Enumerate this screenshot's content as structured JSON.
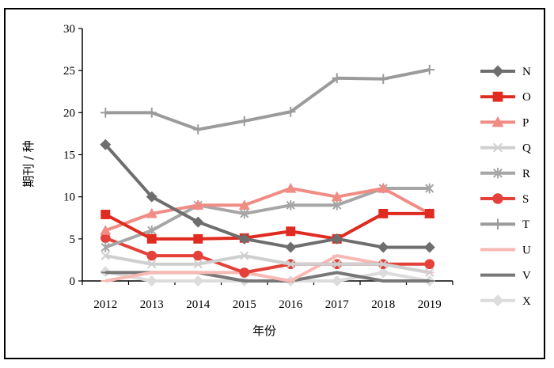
{
  "chart_data": {
    "type": "line",
    "title": "",
    "xlabel": "年份",
    "ylabel": "期刊 / 种",
    "categories": [
      "2012",
      "2013",
      "2014",
      "2015",
      "2016",
      "2017",
      "2018",
      "2019"
    ],
    "ylim": [
      0,
      30
    ],
    "yticks": [
      "0",
      "5",
      "10",
      "15",
      "20",
      "25",
      "30"
    ],
    "grid": false,
    "legend_position": "right",
    "series": [
      {
        "name": "N",
        "color": "#6e6e6e",
        "marker": "diamond",
        "values": [
          16.2,
          10,
          7,
          5,
          4,
          5,
          4,
          4
        ]
      },
      {
        "name": "O",
        "color": "#e02b20",
        "marker": "square",
        "values": [
          7.9,
          5,
          5,
          5.1,
          5.9,
          5,
          8,
          8
        ]
      },
      {
        "name": "P",
        "color": "#f08c84",
        "marker": "triangle",
        "values": [
          6,
          8,
          9,
          9,
          11,
          10,
          11,
          8
        ]
      },
      {
        "name": "Q",
        "color": "#cfcfcf",
        "marker": "x",
        "values": [
          3,
          2,
          2,
          3,
          2,
          2,
          2,
          1
        ]
      },
      {
        "name": "R",
        "color": "#a6a6a6",
        "marker": "asterisk",
        "values": [
          4,
          6,
          9,
          8,
          9,
          9,
          11,
          11
        ]
      },
      {
        "name": "S",
        "color": "#e4413a",
        "marker": "circle",
        "values": [
          5.1,
          3,
          3,
          1,
          2,
          2,
          2,
          2
        ]
      },
      {
        "name": "T",
        "color": "#9b9b9b",
        "marker": "plus",
        "values": [
          20,
          20,
          18,
          19,
          20.1,
          24.1,
          24,
          25.1
        ]
      },
      {
        "name": "U",
        "color": "#f7b9b3",
        "marker": "dash",
        "values": [
          0,
          1,
          1,
          1,
          0,
          3,
          2,
          1
        ]
      },
      {
        "name": "V",
        "color": "#777777",
        "marker": "dash",
        "values": [
          1,
          1,
          1,
          0,
          0,
          1,
          0,
          0
        ]
      },
      {
        "name": "X",
        "color": "#dcdcdc",
        "marker": "diamond",
        "values": [
          1.1,
          0,
          0,
          0,
          0,
          0,
          1,
          0
        ]
      }
    ]
  }
}
